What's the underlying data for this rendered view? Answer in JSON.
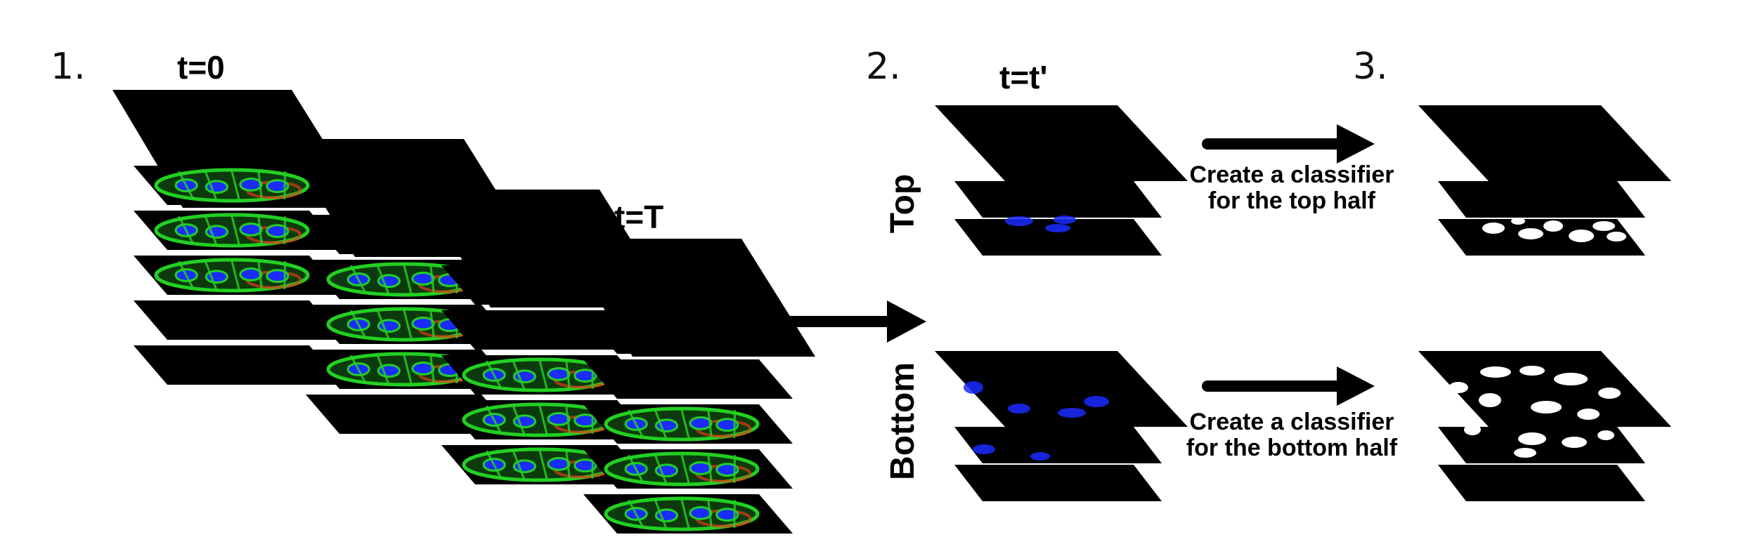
{
  "steps": {
    "step1": "1.",
    "step2": "2.",
    "step3": "3."
  },
  "time_labels": {
    "t0": "t=0",
    "tT": "t=T",
    "tprime": "t=t'"
  },
  "half_labels": {
    "top": "Top",
    "bottom": "Bottom"
  },
  "captions": {
    "top_line1": "Create a classifier",
    "top_line2": "for the top half",
    "bottom_line1": "Create a classifier",
    "bottom_line2": "for the bottom half"
  },
  "colors": {
    "slice": "#000000",
    "membrane": "#22d022",
    "nucleus": "#1a2cff",
    "edge": "#e23a1a",
    "mask": "#ffffff",
    "arrow": "#000000"
  },
  "icons": [
    "right-arrow-icon"
  ]
}
